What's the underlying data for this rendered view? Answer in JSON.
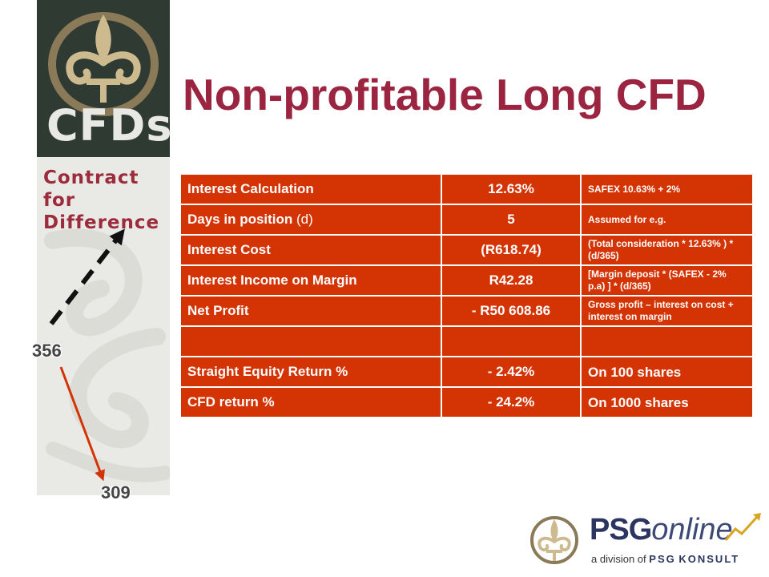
{
  "banner": {
    "logo_text": "CFDs",
    "subtitle_line1": "Contract for",
    "subtitle_line2": "Difference"
  },
  "title": "Non-profitable Long CFD",
  "table": {
    "rows": [
      {
        "label": "Interest Calculation",
        "label_suffix": "",
        "value": "12.63%",
        "note": "SAFEX 10.63% + 2%"
      },
      {
        "label": "Days in position",
        "label_suffix": " (d)",
        "value": "5",
        "note": "Assumed for e.g."
      },
      {
        "label": "Interest Cost",
        "label_suffix": "",
        "value": "(R618.74)",
        "note": "(Total consideration * 12.63% ) * (d/365)"
      },
      {
        "label": "Interest Income on Margin",
        "label_suffix": "",
        "value": "R42.28",
        "note": "[Margin deposit * (SAFEX - 2% p.a) ] * (d/365)"
      },
      {
        "label": "Net Profit",
        "label_suffix": "",
        "value": "- R50 608.86",
        "note": "Gross profit – interest on cost + interest on margin"
      },
      {
        "label": "",
        "label_suffix": "",
        "value": "",
        "note": ""
      },
      {
        "label": "Straight Equity Return %",
        "label_suffix": "",
        "value": "- 2.42%",
        "note": "On 100 shares"
      },
      {
        "label": "CFD return %",
        "label_suffix": "",
        "value": "- 24.2%",
        "note": "On 1000 shares"
      }
    ]
  },
  "price_labels": {
    "start": "356",
    "end": "309"
  },
  "logo": {
    "psg": "PSG",
    "online": "online",
    "sub_prefix": "a division of",
    "sub_psg": "PSG",
    "sub_konsult": "KONSULT"
  },
  "colors": {
    "title": "#9b2441",
    "table_fill": "#d43404",
    "banner_dark": "#2f3a33",
    "arrow_dashed": "#111111",
    "arrow_down": "#d43404"
  }
}
